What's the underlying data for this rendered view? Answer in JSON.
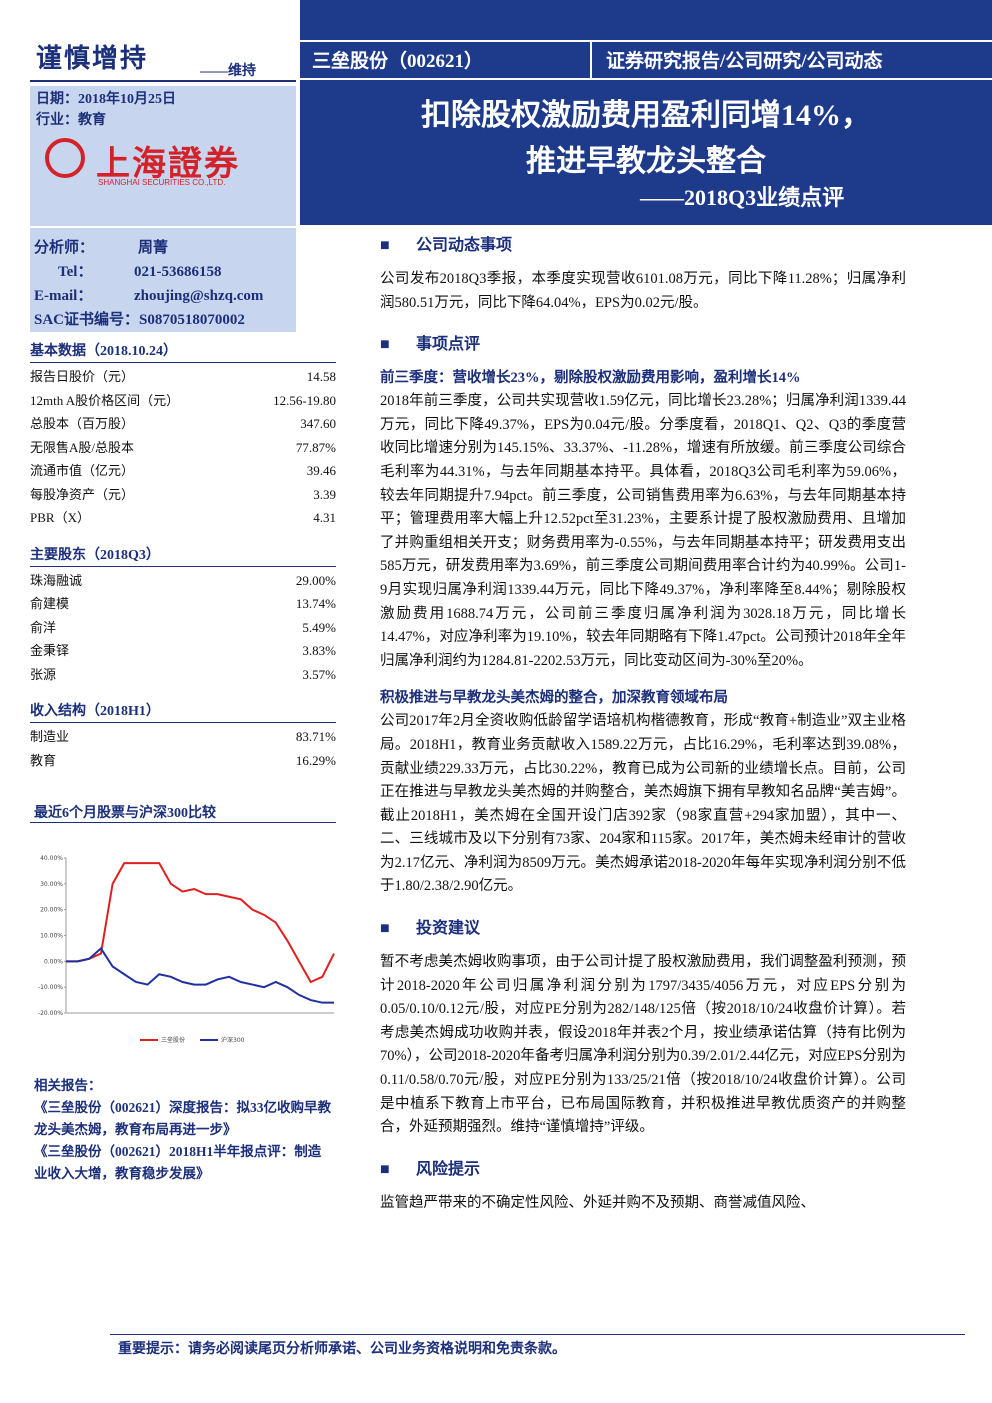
{
  "header": {
    "rating": "谨慎增持",
    "rating_note": "——维持",
    "date": "日期：2018年10月25日",
    "industry": "行业：教育",
    "logo_cn": "上海證券",
    "logo_en": "SHANGHAI SECURITIES CO.,LTD.",
    "company": "三垒股份（002621）",
    "report_type": "证券研究报告/公司研究/公司动态",
    "title_line1": "扣除股权激励费用盈利同增14%，",
    "title_line2": "推进早教龙头整合",
    "subtitle": "——2018Q3业绩点评"
  },
  "analyst": {
    "rows": [
      [
        "分析师：",
        "周菁"
      ],
      [
        "Tel：",
        "021-53686158"
      ],
      [
        "E-mail：",
        "zhoujing@shzq.com"
      ]
    ],
    "sac": "SAC证书编号：S0870518070002"
  },
  "basic_data": {
    "title": "基本数据（2018.10.24）",
    "rows": [
      [
        "报告日股价（元）",
        "14.58"
      ],
      [
        "12mth A股价格区间（元）",
        "12.56-19.80"
      ],
      [
        "总股本（百万股）",
        "347.60"
      ],
      [
        "无限售A股/总股本",
        "77.87%"
      ],
      [
        "流通市值（亿元）",
        "39.46"
      ],
      [
        "每股净资产（元）",
        "3.39"
      ],
      [
        "PBR（X）",
        "4.31"
      ]
    ]
  },
  "shareholders": {
    "title": "主要股东（2018Q3）",
    "rows": [
      [
        "珠海融诚",
        "29.00%"
      ],
      [
        "俞建模",
        "13.74%"
      ],
      [
        "俞洋",
        "5.49%"
      ],
      [
        "金秉铎",
        "3.83%"
      ],
      [
        "张源",
        "3.57%"
      ]
    ]
  },
  "revenue_structure": {
    "title": "收入结构（2018H1）",
    "rows": [
      [
        "制造业",
        "83.71%"
      ],
      [
        "教育",
        "16.29%"
      ]
    ]
  },
  "chart": {
    "title": "最近6个月股票与沪深300比较",
    "ylim": [
      -20,
      40
    ],
    "yticks": [
      {
        "value": 40,
        "label": "40.00%"
      },
      {
        "value": 30,
        "label": "30.00%"
      },
      {
        "value": 20,
        "label": "20.00%"
      },
      {
        "value": 10,
        "label": "10.00%"
      },
      {
        "value": 0,
        "label": "0.00%"
      },
      {
        "value": -10,
        "label": "-10.00%"
      },
      {
        "value": -20,
        "label": "-20.00%"
      }
    ],
    "series": [
      {
        "name": "三垒股份",
        "color": "#e02020",
        "values": [
          0,
          0,
          1,
          3,
          30,
          38,
          38,
          38,
          38,
          30,
          27,
          28,
          26,
          26,
          25,
          24,
          20,
          18,
          15,
          8,
          0,
          -8,
          -6,
          3
        ]
      },
      {
        "name": "沪深300",
        "color": "#2030a0",
        "values": [
          0,
          0,
          1,
          5,
          -2,
          -5,
          -8,
          -9,
          -5,
          -6,
          -8,
          -9,
          -9,
          -7,
          -6,
          -8,
          -9,
          -10,
          -8,
          -10,
          -13,
          -15,
          -16,
          -16
        ]
      }
    ]
  },
  "related": {
    "title": "相关报告：",
    "items": [
      "《三垒股份（002621）深度报告：拟33亿收购早教龙头美杰姆，教育布局再进一步》",
      "《三垒股份（002621）2018H1半年报点评：制造业收入大增，教育稳步发展》"
    ]
  },
  "sections": [
    {
      "heading": "公司动态事项",
      "blocks": [
        {
          "text": "公司发布2018Q3季报，本季度实现营收6101.08万元，同比下降11.28%；归属净利润580.51万元，同比下降64.04%，EPS为0.02元/股。"
        }
      ]
    },
    {
      "heading": "事项点评",
      "blocks": [
        {
          "subheading": "前三季度：营收增长23%，剔除股权激励费用影响，盈利增长14%",
          "text": "2018年前三季度，公司共实现营收1.59亿元，同比增长23.28%；归属净利润1339.44万元，同比下降49.37%，EPS为0.04元/股。分季度看，2018Q1、Q2、Q3的季度营收同比增速分别为145.15%、33.37%、-11.28%，增速有所放缓。前三季度公司综合毛利率为44.31%，与去年同期基本持平。具体看，2018Q3公司毛利率为59.06%，较去年同期提升7.94pct。前三季度，公司销售费用率为6.63%，与去年同期基本持平；管理费用率大幅上升12.52pct至31.23%，主要系计提了股权激励费用、且增加了并购重组相关开支；财务费用率为-0.55%，与去年同期基本持平；研发费用支出585万元，研发费用率为3.69%，前三季度公司期间费用率合计约为40.99%。公司1-9月实现归属净利润1339.44万元，同比下降49.37%，净利率降至8.44%；剔除股权激励费用1688.74万元，公司前三季度归属净利润为3028.18万元，同比增长14.47%，对应净利率为19.10%，较去年同期略有下降1.47pct。公司预计2018年全年归属净利润约为1284.81-2202.53万元，同比变动区间为-30%至20%。"
        },
        {
          "subheading": "积极推进与早教龙头美杰姆的整合，加深教育领域布局",
          "text": "公司2017年2月全资收购低龄留学语培机构楷德教育，形成“教育+制造业”双主业格局。2018H1，教育业务贡献收入1589.22万元，占比16.29%，毛利率达到39.08%，贡献业绩229.33万元，占比30.22%，教育已成为公司新的业绩增长点。目前，公司正在推进与早教龙头美杰姆的并购整合，美杰姆旗下拥有早教知名品牌“美吉姆”。截止2018H1，美杰姆在全国开设门店392家（98家直营+294家加盟），其中一、二、三线城市及以下分别有73家、204家和115家。2017年，美杰姆未经审计的营收为2.17亿元、净利润为8509万元。美杰姆承诺2018-2020年每年实现净利润分别不低于1.80/2.38/2.90亿元。"
        }
      ]
    },
    {
      "heading": "投资建议",
      "blocks": [
        {
          "text": "暂不考虑美杰姆收购事项，由于公司计提了股权激励费用，我们调整盈利预测，预计2018-2020年公司归属净利润分别为1797/3435/4056万元，对应EPS分别为0.05/0.10/0.12元/股，对应PE分别为282/148/125倍（按2018/10/24收盘价计算）。若考虑美杰姆成功收购并表，假设2018年并表2个月，按业绩承诺估算（持有比例为70%），公司2018-2020年备考归属净利润分别为0.39/2.01/2.44亿元，对应EPS分别为0.11/0.58/0.70元/股，对应PE分别为133/25/21倍（按2018/10/24收盘价计算）。公司是中植系下教育上市平台，已布局国际教育，并积极推进早教优质资产的并购整合，外延预期强烈。维持“谨慎增持”评级。"
        }
      ]
    },
    {
      "heading": "风险提示",
      "blocks": [
        {
          "text": "监管趋严带来的不确定性风险、外延并购不及预期、商誉减值风险、"
        }
      ]
    }
  ],
  "footer": "重要提示：请务必阅读尾页分析师承诺、公司业务资格说明和免责条款。"
}
